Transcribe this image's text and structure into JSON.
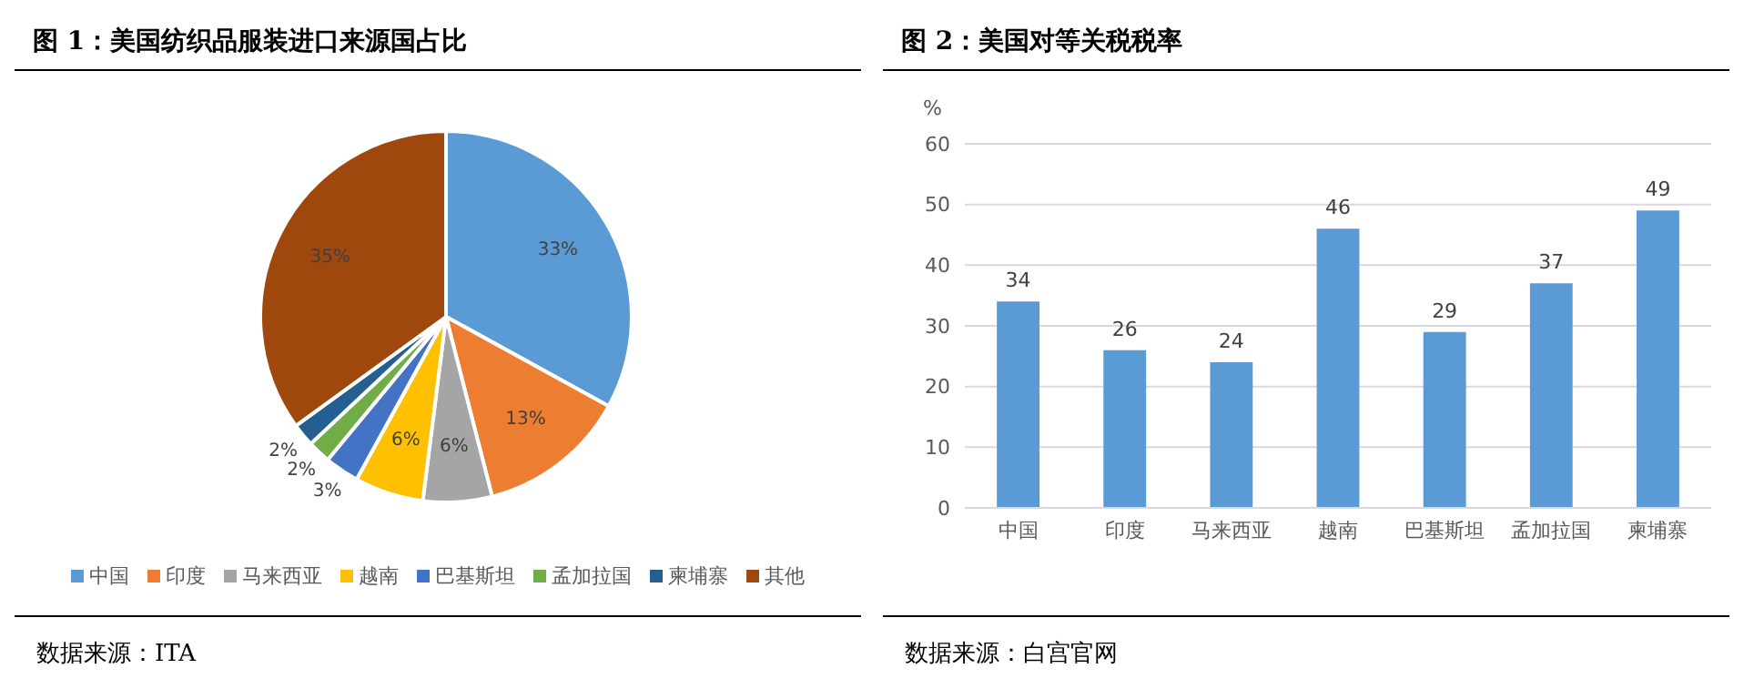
{
  "chart_data": [
    {
      "type": "pie",
      "title": "图 1：美国纺织品服装进口来源国占比",
      "categories": [
        "中国",
        "印度",
        "马来西亚",
        "越南",
        "巴基斯坦",
        "孟加拉国",
        "柬埔寨",
        "其他"
      ],
      "values": [
        33,
        13,
        6,
        6,
        3,
        2,
        2,
        35
      ],
      "colors": [
        "#5b9bd5",
        "#ed7d31",
        "#a5a5a5",
        "#ffc000",
        "#4472c4",
        "#70ad47",
        "#255e91",
        "#9e480e"
      ],
      "value_labels": [
        "33%",
        "13%",
        "6%",
        "6%",
        "3%",
        "2%",
        "2%",
        "35%"
      ],
      "legend": "bottom",
      "annotations": [
        "数据来源：ITA"
      ]
    },
    {
      "type": "bar",
      "title": "图 2：美国对等关税税率",
      "ylabel": "%",
      "categories": [
        "中国",
        "印度",
        "马来西亚",
        "越南",
        "巴基斯坦",
        "孟加拉国",
        "柬埔寨"
      ],
      "values": [
        34,
        26,
        24,
        46,
        29,
        37,
        49
      ],
      "color": "#5b9bd5",
      "ylim": [
        0,
        60
      ],
      "yticks": [
        0,
        10,
        20,
        30,
        40,
        50,
        60
      ],
      "grid": "y",
      "data_labels": true,
      "legend": false,
      "annotations": [
        "数据来源：白宫官网"
      ]
    }
  ]
}
